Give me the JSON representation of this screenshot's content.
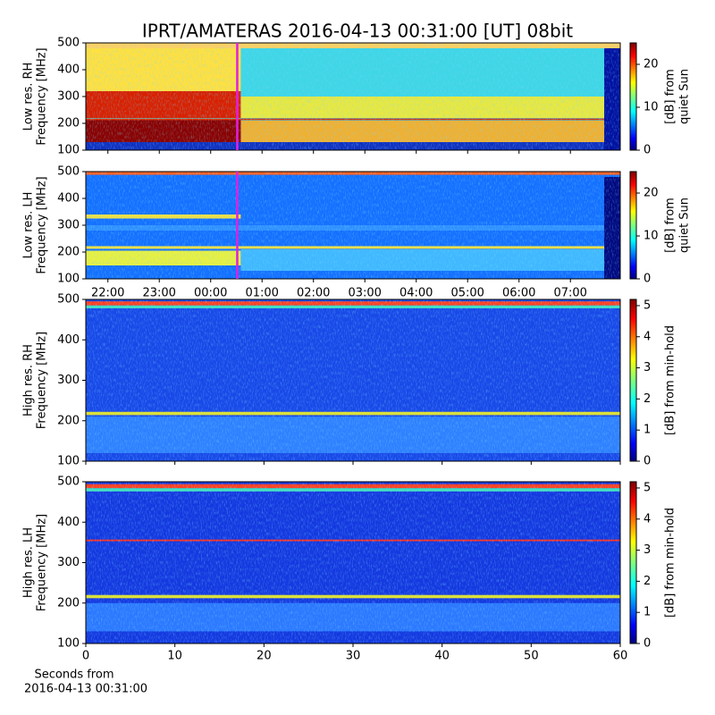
{
  "title": "IPRT/AMATERAS 2016-04-13 00:31:00 [UT]   08bit",
  "panels": [
    {
      "label": "Low res. RH",
      "ylabel": "Frequency [MHz]",
      "ylim": [
        100,
        500
      ],
      "yticks": [
        100,
        200,
        300,
        400,
        500
      ],
      "colorbar": {
        "label_lines": [
          "[dB] from",
          "quiet Sun"
        ],
        "clim": [
          0,
          25
        ],
        "ticks": [
          0,
          10,
          20
        ]
      }
    },
    {
      "label": "Low res. LH",
      "ylabel": "Frequency [MHz]",
      "ylim": [
        100,
        500
      ],
      "yticks": [
        100,
        200,
        300,
        400,
        500
      ],
      "colorbar": {
        "label_lines": [
          "[dB] from",
          "quiet Sun"
        ],
        "clim": [
          0,
          25
        ],
        "ticks": [
          0,
          10,
          20
        ]
      }
    },
    {
      "label": "High res. RH",
      "ylabel": "Frequency [MHz]",
      "ylim": [
        100,
        500
      ],
      "yticks": [
        100,
        200,
        300,
        400,
        500
      ],
      "colorbar": {
        "label_lines": [
          "[dB] from min-hold"
        ],
        "clim": [
          0,
          5.2
        ],
        "ticks": [
          0,
          1,
          2,
          3,
          4,
          5
        ]
      }
    },
    {
      "label": "High res. LH",
      "ylabel": "Frequency [MHz]",
      "ylim": [
        100,
        500
      ],
      "yticks": [
        100,
        200,
        300,
        400,
        500
      ],
      "colorbar": {
        "label_lines": [
          "[dB] from min-hold"
        ],
        "clim": [
          0,
          5.2
        ],
        "ticks": [
          0,
          1,
          2,
          3,
          4,
          5
        ]
      }
    }
  ],
  "time_axis": {
    "xlim": [
      21.57,
      31.97
    ],
    "marker": 24.5167,
    "xticks": [
      {
        "value": 22,
        "label": "22:00"
      },
      {
        "value": 23,
        "label": "23:00"
      },
      {
        "value": 24,
        "label": "00:00"
      },
      {
        "value": 25,
        "label": "01:00"
      },
      {
        "value": 26,
        "label": "02:00"
      },
      {
        "value": 27,
        "label": "03:00"
      },
      {
        "value": 28,
        "label": "04:00"
      },
      {
        "value": 29,
        "label": "05:00"
      },
      {
        "value": 30,
        "label": "06:00"
      },
      {
        "value": 31,
        "label": "07:00"
      }
    ]
  },
  "seconds_axis": {
    "xlim": [
      0,
      60
    ],
    "xticks": [
      0,
      10,
      20,
      30,
      40,
      50,
      60
    ],
    "xlabel_lines": [
      "Seconds from",
      "2016-04-13 00:31:00"
    ]
  }
}
